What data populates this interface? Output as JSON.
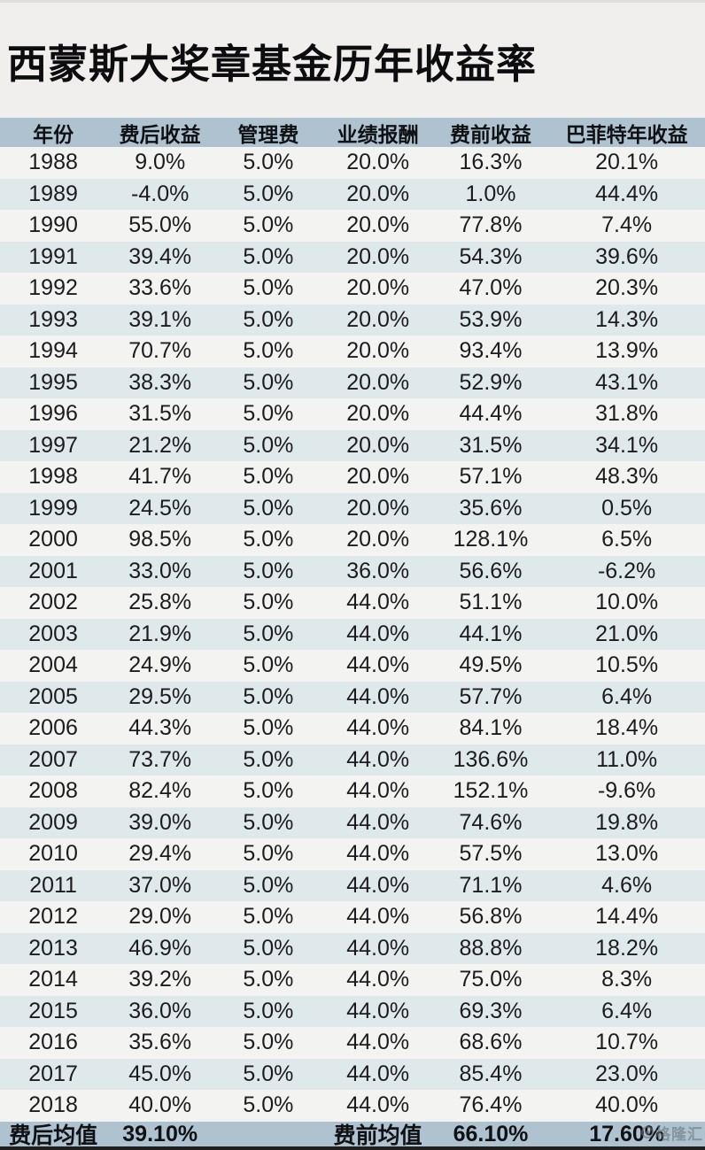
{
  "title": "西蒙斯大奖章基金历年收益率",
  "watermark": "格隆汇",
  "colors": {
    "page_bg": "#f0efee",
    "header_bg": "#aec3cf",
    "row_light": "#f3f3f1",
    "row_blue": "#dfe9ec",
    "text": "#1c1c1e",
    "bottom_strip": "#1f1f1f"
  },
  "chart_data": {
    "type": "table",
    "title": "西蒙斯大奖章基金历年收益率",
    "columns": [
      "年份",
      "费后收益",
      "管理费",
      "业绩报酬",
      "费前收益",
      "巴菲特年收益"
    ],
    "rows": [
      [
        "1988",
        "9.0%",
        "5.0%",
        "20.0%",
        "16.3%",
        "20.1%"
      ],
      [
        "1989",
        "-4.0%",
        "5.0%",
        "20.0%",
        "1.0%",
        "44.4%"
      ],
      [
        "1990",
        "55.0%",
        "5.0%",
        "20.0%",
        "77.8%",
        "7.4%"
      ],
      [
        "1991",
        "39.4%",
        "5.0%",
        "20.0%",
        "54.3%",
        "39.6%"
      ],
      [
        "1992",
        "33.6%",
        "5.0%",
        "20.0%",
        "47.0%",
        "20.3%"
      ],
      [
        "1993",
        "39.1%",
        "5.0%",
        "20.0%",
        "53.9%",
        "14.3%"
      ],
      [
        "1994",
        "70.7%",
        "5.0%",
        "20.0%",
        "93.4%",
        "13.9%"
      ],
      [
        "1995",
        "38.3%",
        "5.0%",
        "20.0%",
        "52.9%",
        "43.1%"
      ],
      [
        "1996",
        "31.5%",
        "5.0%",
        "20.0%",
        "44.4%",
        "31.8%"
      ],
      [
        "1997",
        "21.2%",
        "5.0%",
        "20.0%",
        "31.5%",
        "34.1%"
      ],
      [
        "1998",
        "41.7%",
        "5.0%",
        "20.0%",
        "57.1%",
        "48.3%"
      ],
      [
        "1999",
        "24.5%",
        "5.0%",
        "20.0%",
        "35.6%",
        "0.5%"
      ],
      [
        "2000",
        "98.5%",
        "5.0%",
        "20.0%",
        "128.1%",
        "6.5%"
      ],
      [
        "2001",
        "33.0%",
        "5.0%",
        "36.0%",
        "56.6%",
        "-6.2%"
      ],
      [
        "2002",
        "25.8%",
        "5.0%",
        "44.0%",
        "51.1%",
        "10.0%"
      ],
      [
        "2003",
        "21.9%",
        "5.0%",
        "44.0%",
        "44.1%",
        "21.0%"
      ],
      [
        "2004",
        "24.9%",
        "5.0%",
        "44.0%",
        "49.5%",
        "10.5%"
      ],
      [
        "2005",
        "29.5%",
        "5.0%",
        "44.0%",
        "57.7%",
        "6.4%"
      ],
      [
        "2006",
        "44.3%",
        "5.0%",
        "44.0%",
        "84.1%",
        "18.4%"
      ],
      [
        "2007",
        "73.7%",
        "5.0%",
        "44.0%",
        "136.6%",
        "11.0%"
      ],
      [
        "2008",
        "82.4%",
        "5.0%",
        "44.0%",
        "152.1%",
        "-9.6%"
      ],
      [
        "2009",
        "39.0%",
        "5.0%",
        "44.0%",
        "74.6%",
        "19.8%"
      ],
      [
        "2010",
        "29.4%",
        "5.0%",
        "44.0%",
        "57.5%",
        "13.0%"
      ],
      [
        "2011",
        "37.0%",
        "5.0%",
        "44.0%",
        "71.1%",
        "4.6%"
      ],
      [
        "2012",
        "29.0%",
        "5.0%",
        "44.0%",
        "56.8%",
        "14.4%"
      ],
      [
        "2013",
        "46.9%",
        "5.0%",
        "44.0%",
        "88.8%",
        "18.2%"
      ],
      [
        "2014",
        "39.2%",
        "5.0%",
        "44.0%",
        "75.0%",
        "8.3%"
      ],
      [
        "2015",
        "36.0%",
        "5.0%",
        "44.0%",
        "69.3%",
        "6.4%"
      ],
      [
        "2016",
        "35.6%",
        "5.0%",
        "44.0%",
        "68.6%",
        "10.7%"
      ],
      [
        "2017",
        "45.0%",
        "5.0%",
        "44.0%",
        "85.4%",
        "23.0%"
      ],
      [
        "2018",
        "40.0%",
        "5.0%",
        "44.0%",
        "76.4%",
        "40.0%"
      ]
    ],
    "summary_row": [
      "费后均值",
      "39.10%",
      "",
      "费前均值",
      "66.10%",
      "17.60%"
    ]
  }
}
